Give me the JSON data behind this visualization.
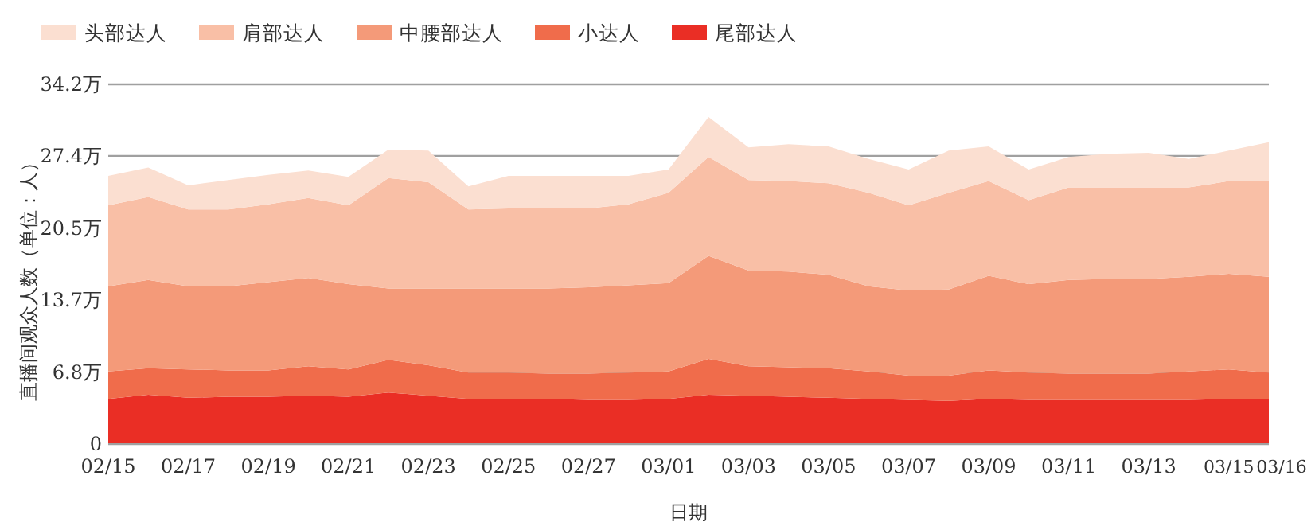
{
  "chart_data": {
    "type": "area",
    "stacked": true,
    "xlabel": "日期",
    "ylabel": "直播间观众人数（单位：人）",
    "categories": [
      "02/15",
      null,
      "02/17",
      null,
      "02/19",
      null,
      "02/21",
      null,
      "02/23",
      null,
      "02/25",
      null,
      "02/27",
      null,
      "03/01",
      null,
      "03/03",
      null,
      "03/05",
      null,
      "03/07",
      null,
      "03/09",
      null,
      "03/11",
      null,
      "03/13",
      null,
      "03/15",
      "03/16"
    ],
    "ylim": [
      0,
      34.2
    ],
    "yticks": [
      0,
      {
        "value": 6.8,
        "label": "6.8万"
      },
      {
        "value": 13.7,
        "label": "13.7万"
      },
      {
        "value": 20.5,
        "label": "20.5万"
      },
      {
        "value": 27.4,
        "label": "27.4万"
      },
      {
        "value": 34.2,
        "label": "34.2万"
      }
    ],
    "grid": "y",
    "legend": "top",
    "series": [
      {
        "name": "尾部达人",
        "color": "#ea2e25",
        "values": [
          4.3,
          4.7,
          4.4,
          4.5,
          4.5,
          4.6,
          4.5,
          4.9,
          4.6,
          4.3,
          4.3,
          4.3,
          4.2,
          4.2,
          4.3,
          4.7,
          4.6,
          4.5,
          4.4,
          4.3,
          4.2,
          4.1,
          4.3,
          4.2,
          4.2,
          4.2,
          4.2,
          4.2,
          4.3,
          4.3
        ]
      },
      {
        "name": "小达人",
        "color": "#f06c4b",
        "values": [
          2.6,
          2.5,
          2.7,
          2.5,
          2.5,
          2.8,
          2.6,
          3.1,
          2.9,
          2.5,
          2.5,
          2.4,
          2.5,
          2.6,
          2.6,
          3.4,
          2.8,
          2.8,
          2.8,
          2.6,
          2.3,
          2.4,
          2.7,
          2.6,
          2.5,
          2.5,
          2.5,
          2.7,
          2.8,
          2.5
        ]
      },
      {
        "name": "中腰部达人",
        "color": "#f49a79",
        "values": [
          8.1,
          8.4,
          7.9,
          8.0,
          8.4,
          8.4,
          8.1,
          6.8,
          7.3,
          8.0,
          8.0,
          8.1,
          8.2,
          8.3,
          8.4,
          9.8,
          9.1,
          9.1,
          8.9,
          8.1,
          8.1,
          8.2,
          9.0,
          8.4,
          8.9,
          9.0,
          9.0,
          9.0,
          9.1,
          9.1
        ]
      },
      {
        "name": "肩部达人",
        "color": "#f9bfa6",
        "values": [
          7.7,
          7.9,
          7.3,
          7.3,
          7.4,
          7.6,
          7.5,
          10.5,
          10.1,
          7.5,
          7.6,
          7.6,
          7.5,
          7.7,
          8.6,
          9.4,
          8.6,
          8.6,
          8.7,
          8.9,
          8.1,
          9.2,
          9.0,
          8.0,
          8.8,
          8.7,
          8.7,
          8.5,
          8.8,
          9.1
        ]
      },
      {
        "name": "头部达人",
        "color": "#fbdfd1",
        "values": [
          2.8,
          2.8,
          2.3,
          2.8,
          2.8,
          2.6,
          2.7,
          2.7,
          3.0,
          2.2,
          3.1,
          3.1,
          3.1,
          2.7,
          2.2,
          3.8,
          3.1,
          3.5,
          3.5,
          3.2,
          3.4,
          4.0,
          3.3,
          2.9,
          2.9,
          3.2,
          3.3,
          2.7,
          2.9,
          3.7
        ]
      }
    ]
  }
}
